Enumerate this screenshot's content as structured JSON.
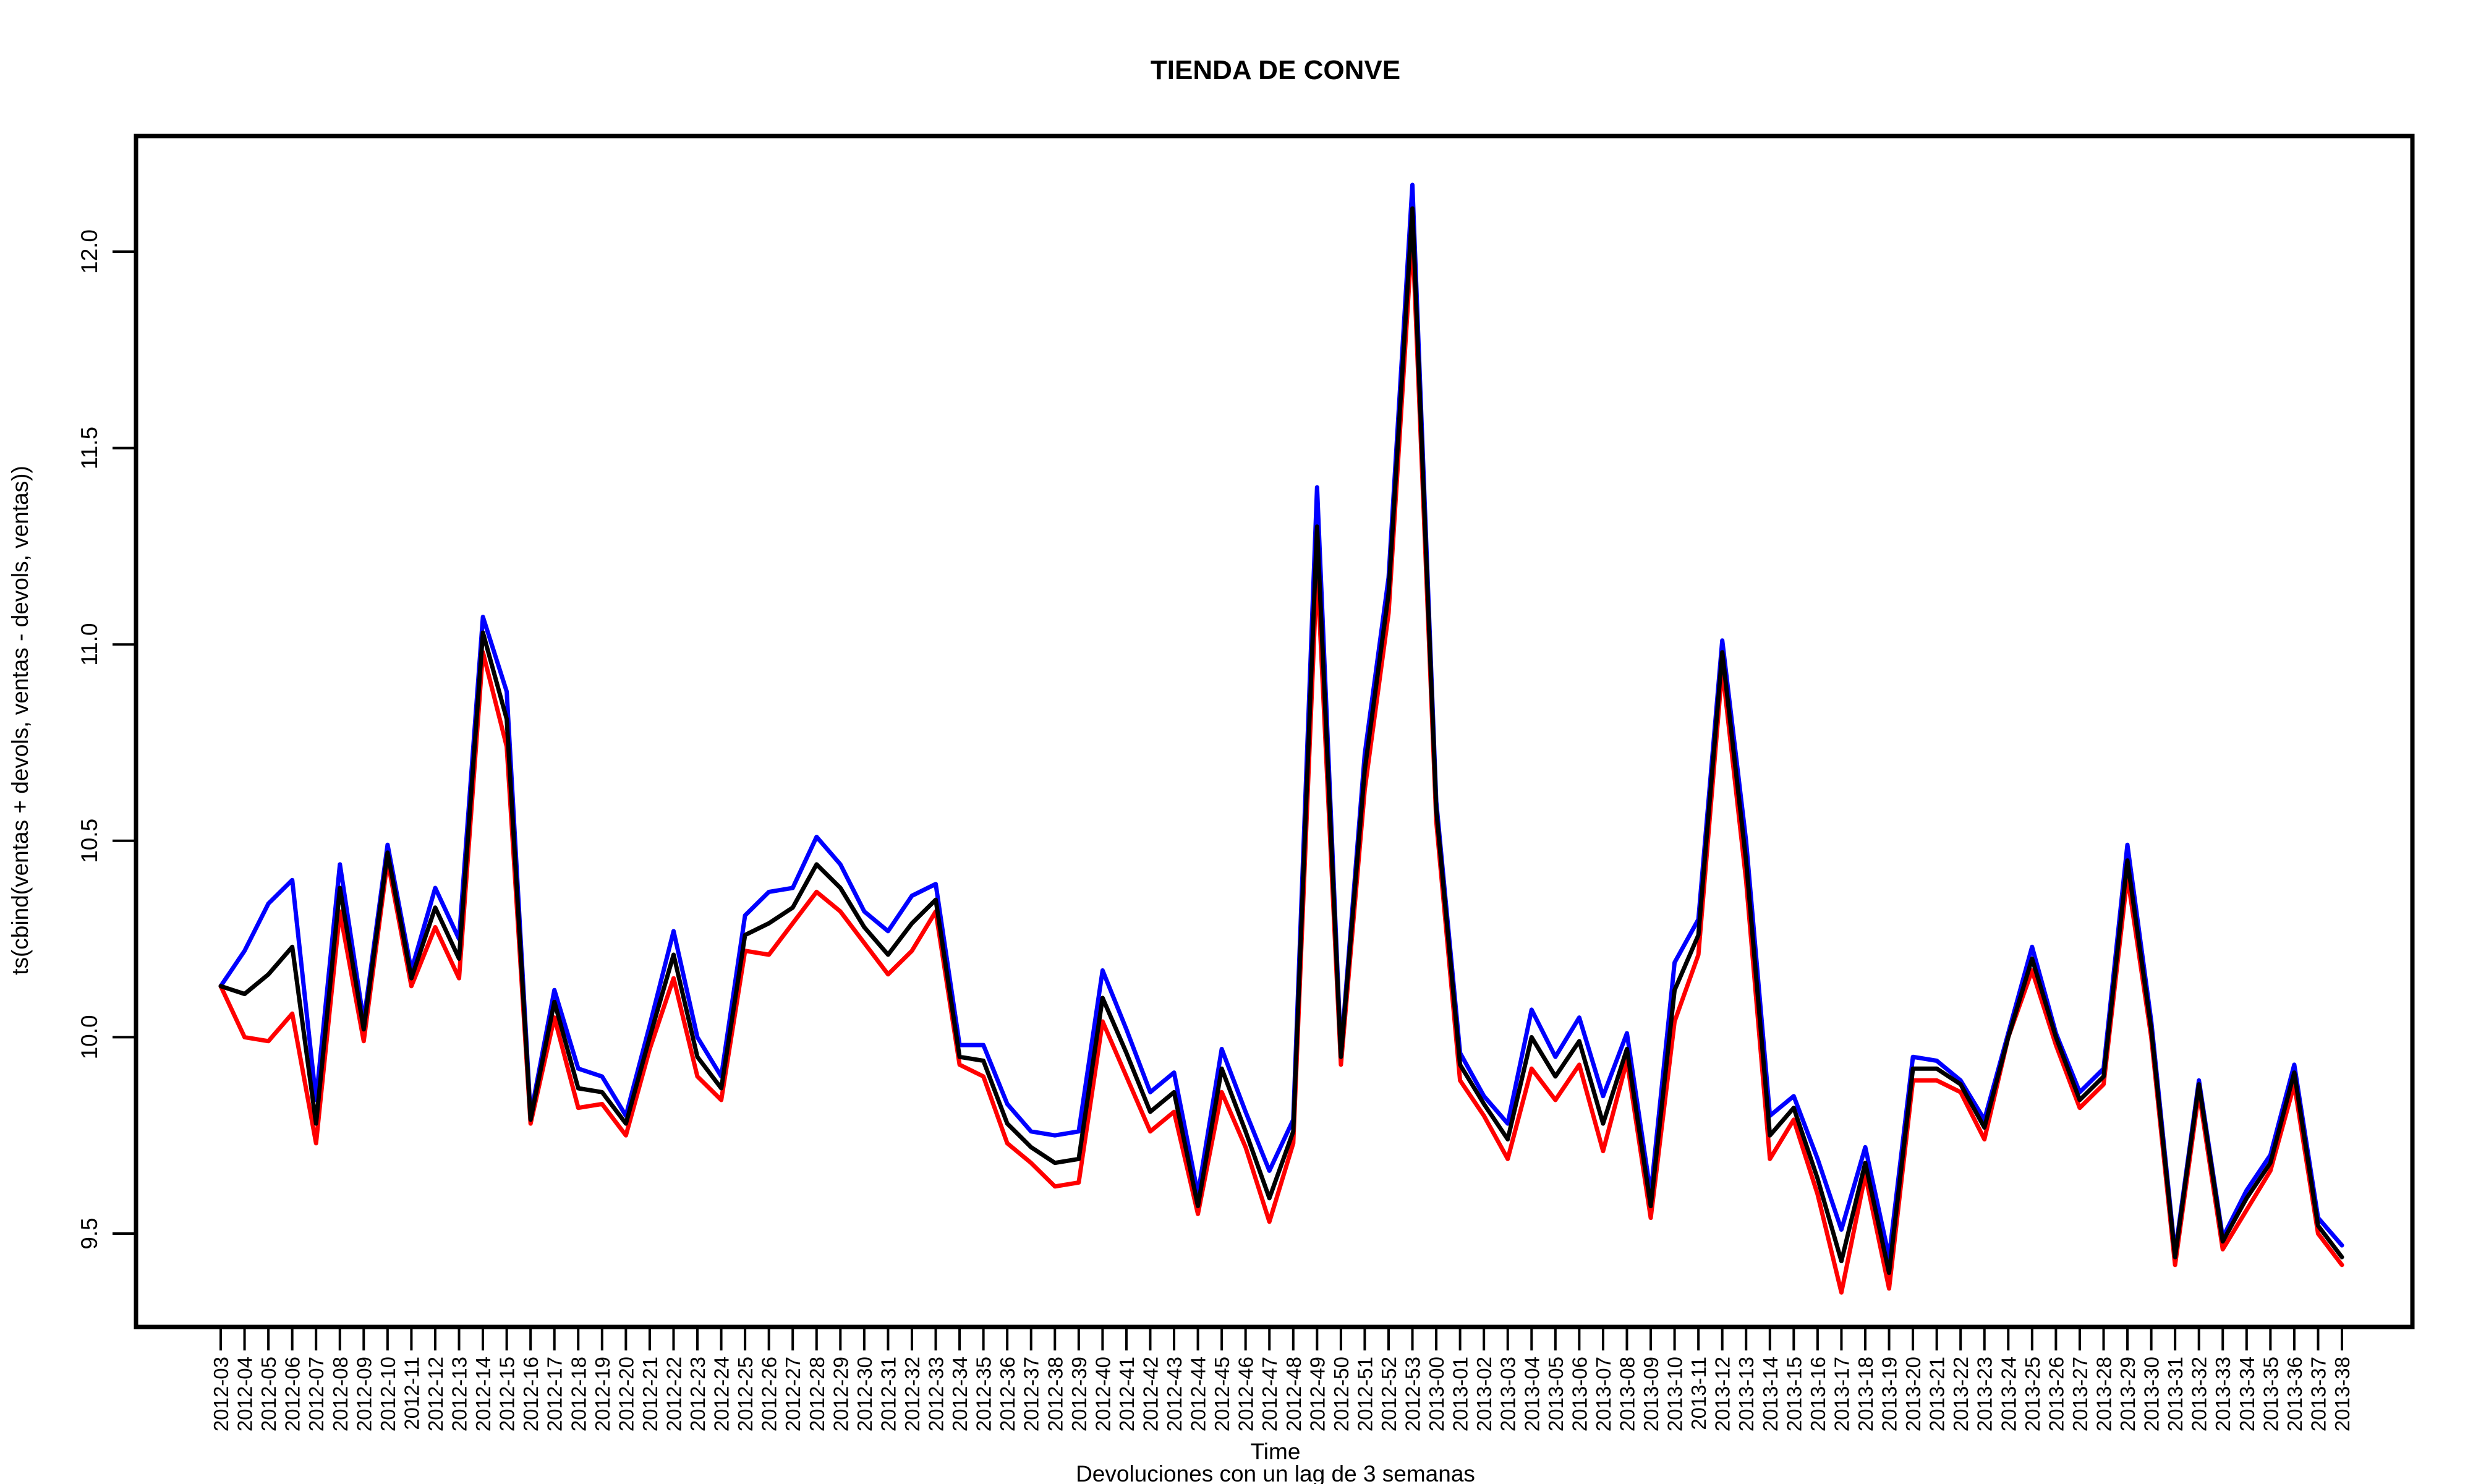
{
  "chart_data": {
    "type": "line",
    "title": "TIENDA DE CONVE",
    "xlabel": "Time",
    "subtitle": "Devoluciones con un lag de 3 semanas",
    "ylabel": "ts(cbind(ventas + devols, ventas - devols, ventas))",
    "ylim": [
      9.25,
      12.3
    ],
    "yticks": [
      9.5,
      10.0,
      10.5,
      11.0,
      11.5,
      12.0
    ],
    "ytick_labels": [
      "9.5",
      "10.0",
      "10.5",
      "11.0",
      "11.5",
      "12.0"
    ],
    "grid": false,
    "legend": "none",
    "categories": [
      "2012-03",
      "2012-04",
      "2012-05",
      "2012-06",
      "2012-07",
      "2012-08",
      "2012-09",
      "2012-10",
      "2012-11",
      "2012-12",
      "2012-13",
      "2012-14",
      "2012-15",
      "2012-16",
      "2012-17",
      "2012-18",
      "2012-19",
      "2012-20",
      "2012-21",
      "2012-22",
      "2012-23",
      "2012-24",
      "2012-25",
      "2012-26",
      "2012-27",
      "2012-28",
      "2012-29",
      "2012-30",
      "2012-31",
      "2012-32",
      "2012-33",
      "2012-34",
      "2012-35",
      "2012-36",
      "2012-37",
      "2012-38",
      "2012-39",
      "2012-40",
      "2012-41",
      "2012-42",
      "2012-43",
      "2012-44",
      "2012-45",
      "2012-46",
      "2012-47",
      "2012-48",
      "2012-49",
      "2012-50",
      "2012-51",
      "2012-52",
      "2012-53",
      "2013-00",
      "2013-01",
      "2013-02",
      "2013-03",
      "2013-04",
      "2013-05",
      "2013-06",
      "2013-07",
      "2013-08",
      "2013-09",
      "2013-10",
      "2013-11",
      "2013-12",
      "2013-13",
      "2013-14",
      "2013-15",
      "2013-16",
      "2013-17",
      "2013-18",
      "2013-19",
      "2013-20",
      "2013-21",
      "2013-22",
      "2013-23",
      "2013-24",
      "2013-25",
      "2013-26",
      "2013-27",
      "2013-28",
      "2013-29",
      "2013-30",
      "2013-31",
      "2013-32",
      "2013-33",
      "2013-34",
      "2013-35",
      "2013-36",
      "2013-37",
      "2013-38"
    ],
    "series": [
      {
        "color": "#0000ff",
        "values": [
          10.13,
          10.22,
          10.34,
          10.4,
          9.84,
          10.44,
          10.04,
          10.49,
          10.17,
          10.38,
          10.25,
          11.07,
          10.88,
          9.8,
          10.12,
          9.92,
          9.9,
          9.8,
          10.03,
          10.27,
          10.0,
          9.9,
          10.31,
          10.37,
          10.38,
          10.51,
          10.44,
          10.32,
          10.27,
          10.36,
          10.39,
          9.98,
          9.98,
          9.83,
          9.76,
          9.75,
          9.76,
          10.17,
          10.02,
          9.86,
          9.91,
          9.6,
          9.97,
          9.81,
          9.66,
          9.79,
          11.4,
          9.96,
          10.72,
          11.17,
          12.17,
          10.6,
          9.96,
          9.85,
          9.78,
          10.07,
          9.95,
          10.05,
          9.85,
          10.01,
          9.6,
          10.19,
          10.3,
          11.01,
          10.5,
          9.8,
          9.85,
          9.69,
          9.51,
          9.72,
          9.44,
          9.95,
          9.94,
          9.89,
          9.79,
          10.01,
          10.23,
          10.01,
          9.86,
          9.92,
          10.49,
          10.04,
          9.45,
          9.89,
          9.49,
          9.61,
          9.7,
          9.93,
          9.54,
          9.47
        ]
      },
      {
        "color": "#ff0000",
        "values": [
          10.13,
          10.0,
          9.99,
          10.06,
          9.73,
          10.32,
          9.99,
          10.45,
          10.13,
          10.28,
          10.15,
          10.98,
          10.74,
          9.78,
          10.05,
          9.82,
          9.83,
          9.75,
          9.97,
          10.15,
          9.9,
          9.84,
          10.22,
          10.21,
          10.29,
          10.37,
          10.32,
          10.24,
          10.16,
          10.22,
          10.32,
          9.93,
          9.9,
          9.73,
          9.68,
          9.62,
          9.63,
          10.04,
          9.9,
          9.76,
          9.81,
          9.55,
          9.86,
          9.72,
          9.53,
          9.73,
          11.2,
          9.93,
          10.63,
          11.08,
          12.05,
          10.55,
          9.89,
          9.8,
          9.69,
          9.92,
          9.84,
          9.93,
          9.71,
          9.94,
          9.54,
          10.04,
          10.21,
          10.94,
          10.4,
          9.69,
          9.79,
          9.6,
          9.35,
          9.65,
          9.36,
          9.89,
          9.89,
          9.86,
          9.74,
          10.0,
          10.17,
          9.98,
          9.82,
          9.88,
          10.41,
          10.0,
          9.42,
          9.86,
          9.46,
          9.56,
          9.66,
          9.88,
          9.5,
          9.42
        ]
      },
      {
        "color": "#000000",
        "values": [
          10.13,
          10.11,
          10.16,
          10.23,
          9.78,
          10.38,
          10.02,
          10.47,
          10.15,
          10.33,
          10.2,
          11.03,
          10.81,
          9.79,
          10.09,
          9.87,
          9.86,
          9.78,
          10.0,
          10.21,
          9.95,
          9.87,
          10.26,
          10.29,
          10.33,
          10.44,
          10.38,
          10.28,
          10.21,
          10.29,
          10.35,
          9.95,
          9.94,
          9.78,
          9.72,
          9.68,
          9.69,
          10.1,
          9.96,
          9.81,
          9.86,
          9.57,
          9.92,
          9.76,
          9.59,
          9.76,
          11.3,
          9.95,
          10.68,
          11.13,
          12.11,
          10.58,
          9.93,
          9.83,
          9.74,
          10.0,
          9.9,
          9.99,
          9.78,
          9.97,
          9.57,
          10.12,
          10.26,
          10.98,
          10.45,
          9.75,
          9.82,
          9.64,
          9.43,
          9.68,
          9.4,
          9.92,
          9.92,
          9.88,
          9.77,
          10.0,
          10.2,
          10.0,
          9.84,
          9.9,
          10.45,
          10.02,
          9.44,
          9.88,
          9.48,
          9.59,
          9.68,
          9.91,
          9.52,
          9.44
        ]
      }
    ]
  }
}
